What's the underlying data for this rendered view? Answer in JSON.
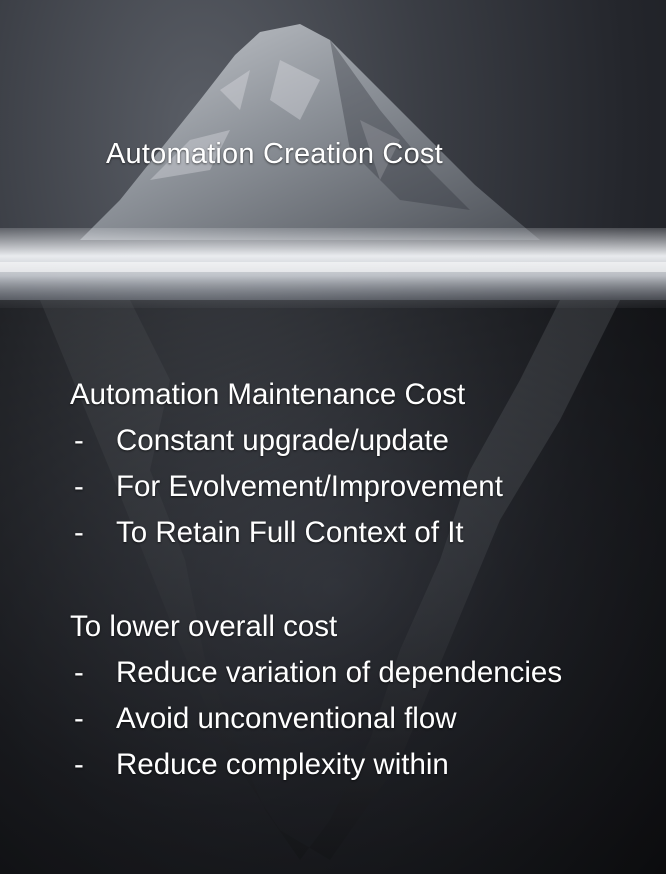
{
  "top_label": "Automation Creation Cost",
  "maintenance": {
    "heading": "Automation Maintenance Cost",
    "items": [
      "Constant upgrade/update",
      "For Evolvement/Improvement",
      "To Retain Full Context of It"
    ]
  },
  "lower_cost": {
    "heading": "To lower overall cost",
    "items": [
      "Reduce variation of dependencies",
      "Avoid unconventional flow",
      "Reduce complexity within"
    ]
  },
  "bullet_marker": "-"
}
